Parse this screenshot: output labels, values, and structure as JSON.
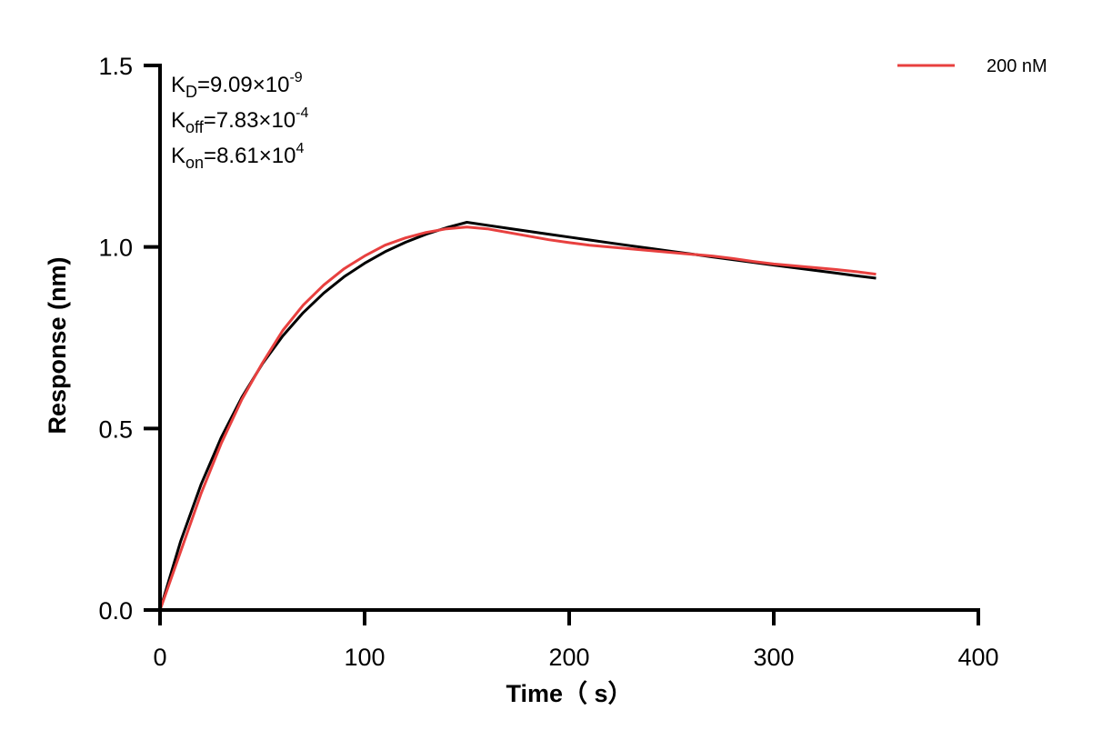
{
  "chart_data": {
    "type": "line",
    "xlabel": "Time（ s）",
    "ylabel": "Response (nm)",
    "xlim": [
      0,
      400
    ],
    "ylim": [
      0,
      1.5
    ],
    "xticks": [
      "0",
      "100",
      "200",
      "300",
      "400"
    ],
    "yticks": [
      "0.0",
      "0.5",
      "1.0",
      "1.5"
    ],
    "grid": false,
    "legend_position": "top-right",
    "annotations": [
      {
        "base": "K",
        "sub": "D",
        "mid": "=9.09×10",
        "sup": "-9"
      },
      {
        "base": "K",
        "sub": "off",
        "mid": "=7.83×10",
        "sup": "-4"
      },
      {
        "base": "K",
        "sub": "on",
        "mid": "=8.61×10",
        "sup": "4"
      }
    ],
    "series": [
      {
        "name": "200 nM",
        "color": "#e8403f",
        "x": [
          0,
          10,
          20,
          30,
          40,
          50,
          60,
          70,
          80,
          90,
          100,
          110,
          120,
          130,
          140,
          150,
          160,
          170,
          180,
          190,
          200,
          210,
          220,
          230,
          240,
          250,
          260,
          270,
          280,
          290,
          300,
          310,
          320,
          330,
          340,
          350
        ],
        "y": [
          0,
          0.16,
          0.32,
          0.46,
          0.58,
          0.68,
          0.77,
          0.84,
          0.895,
          0.94,
          0.975,
          1.005,
          1.025,
          1.04,
          1.05,
          1.055,
          1.05,
          1.04,
          1.03,
          1.02,
          1.012,
          1.005,
          1.0,
          0.995,
          0.99,
          0.985,
          0.98,
          0.975,
          0.968,
          0.96,
          0.953,
          0.948,
          0.943,
          0.938,
          0.932,
          0.925
        ]
      },
      {
        "role": "fit",
        "color": "#000000",
        "x": [
          0,
          10,
          20,
          30,
          40,
          50,
          60,
          70,
          80,
          90,
          100,
          110,
          120,
          130,
          140,
          150,
          160,
          170,
          180,
          190,
          200,
          210,
          220,
          230,
          240,
          250,
          260,
          270,
          280,
          290,
          300,
          310,
          320,
          330,
          340,
          350
        ],
        "y": [
          0,
          0.188,
          0.345,
          0.476,
          0.586,
          0.678,
          0.755,
          0.819,
          0.873,
          0.918,
          0.955,
          0.987,
          1.013,
          1.035,
          1.053,
          1.068,
          1.0597,
          1.0515,
          1.0433,
          1.0352,
          1.0272,
          1.0192,
          1.0113,
          1.0035,
          0.9957,
          0.9879,
          0.9803,
          0.9727,
          0.9651,
          0.9577,
          0.9502,
          0.9429,
          0.9355,
          0.9283,
          0.9211,
          0.9139
        ]
      }
    ]
  }
}
